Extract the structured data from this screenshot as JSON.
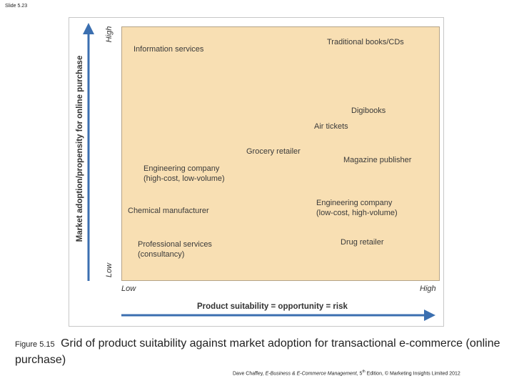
{
  "slide_label": "Slide 5.23",
  "diagram": {
    "y_axis_label": "Market adoption/propensity for online purchase",
    "y_high": "High",
    "y_low": "Low",
    "x_low": "Low",
    "x_high": "High",
    "x_axis_label": "Product suitability = opportunity = risk",
    "items": [
      {
        "line1": "Information services",
        "line2": ""
      },
      {
        "line1": "Traditional books/CDs",
        "line2": ""
      },
      {
        "line1": "Digibooks",
        "line2": ""
      },
      {
        "line1": "Air tickets",
        "line2": ""
      },
      {
        "line1": "Grocery retailer",
        "line2": ""
      },
      {
        "line1": "Magazine publisher",
        "line2": ""
      },
      {
        "line1": "Engineering company",
        "line2": "(high-cost, low-volume)"
      },
      {
        "line1": "Chemical manufacturer",
        "line2": ""
      },
      {
        "line1": "Engineering company",
        "line2": "(low-cost, high-volume)"
      },
      {
        "line1": "Professional services",
        "line2": "(consultancy)"
      },
      {
        "line1": "Drug retailer",
        "line2": ""
      }
    ],
    "colors": {
      "plot_background": "#f8dfb3",
      "axis_arrow": "#3b6fb0"
    }
  },
  "caption": {
    "figure_number": "Figure 5.15",
    "text": "Grid of product suitability against market adoption for transactional e-commerce (online purchase)"
  },
  "credit": {
    "author": "Dave Chaffey, ",
    "book_title": "E-Business & E-Commerce Management",
    "edition_number": ", 5",
    "edition_suffix": "th",
    "rest": " Edition, © Marketing Insights Limited 2012"
  }
}
